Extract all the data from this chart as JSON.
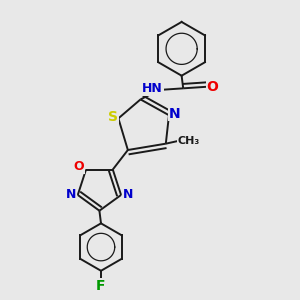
{
  "bg_color": "#e8e8e8",
  "bond_color": "#1a1a1a",
  "atom_colors": {
    "N": "#0000cc",
    "O": "#ee0000",
    "S": "#cccc00",
    "F": "#009900",
    "C": "#1a1a1a",
    "H": "#666666"
  },
  "font_size": 9,
  "lw": 1.4
}
